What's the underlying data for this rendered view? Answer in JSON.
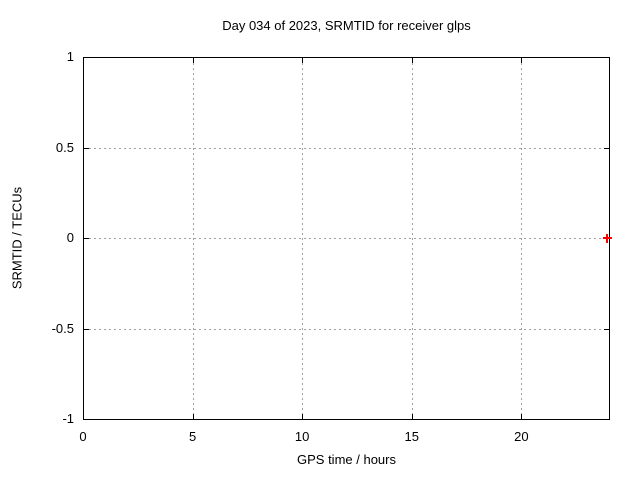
{
  "chart_data": {
    "type": "scatter",
    "title": "Day 034 of 2023, SRMTID for receiver glps",
    "xlabel": "GPS time / hours",
    "ylabel": "SRMTID / TECUs",
    "xlim": [
      0,
      24
    ],
    "ylim": [
      -1,
      1
    ],
    "xticks": [
      0,
      5,
      10,
      15,
      20
    ],
    "xtick_labels": [
      "0",
      "5",
      "10",
      "15",
      "20"
    ],
    "yticks": [
      -1,
      -0.5,
      0,
      0.5,
      1
    ],
    "ytick_labels": [
      "-1",
      "-0.5",
      "0",
      "0.5",
      "1"
    ],
    "grid": true,
    "legend_position": "none",
    "series": [
      {
        "name": "SRMTID",
        "marker": "plus",
        "color": "#ff0000",
        "points": [
          {
            "x": 23.9,
            "y": 0.0
          }
        ]
      }
    ]
  },
  "colors": {
    "background": "#ffffff",
    "axis": "#000000",
    "grid": "#a0a0a0",
    "text": "#000000"
  }
}
